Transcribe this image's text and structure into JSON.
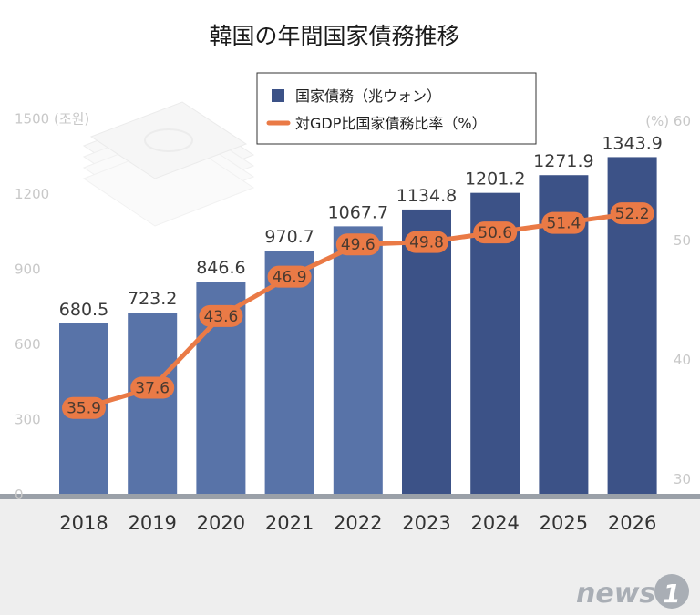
{
  "colors": {
    "bar_light": "#5873a8",
    "bar_dark": "#3c5287",
    "line": "#ea7a46",
    "floor": "#eeeeee",
    "logo": "#a9aeb5"
  },
  "icons": [
    "banknote-stack-icon",
    "news1-logo"
  ],
  "chart_data": {
    "type": "bar",
    "title": "韓国の年間国家債務推移",
    "categories": [
      "2018",
      "2019",
      "2020",
      "2021",
      "2022",
      "2023",
      "2024",
      "2025",
      "2026"
    ],
    "series": [
      {
        "name": "国家債務（兆ウォン）",
        "type": "bar",
        "axis": "left",
        "values": [
          680.5,
          723.2,
          846.6,
          970.7,
          1067.7,
          1134.8,
          1201.2,
          1271.9,
          1343.9
        ],
        "labels": [
          "680.5",
          "723.2",
          "846.6",
          "970.7",
          "1067.7",
          "1134.8",
          "1201.2",
          "1271.9",
          "1343.9"
        ]
      },
      {
        "name": "対GDP比国家債務比率（%）",
        "type": "line",
        "axis": "right",
        "values": [
          35.9,
          37.6,
          43.6,
          46.9,
          49.6,
          49.8,
          50.6,
          51.4,
          52.2
        ],
        "labels": [
          "35.9",
          "37.6",
          "43.6",
          "46.9",
          "49.6",
          "49.8",
          "50.6",
          "51.4",
          "52.2"
        ]
      }
    ],
    "left_axis": {
      "unit_label": "1500 (조원)",
      "ticks": [
        {
          "value": 0,
          "label": "0"
        },
        {
          "value": 300,
          "label": "300"
        },
        {
          "value": 600,
          "label": "600"
        },
        {
          "value": 900,
          "label": "900"
        },
        {
          "value": 1200,
          "label": "1200"
        },
        {
          "value": 1500,
          "label": "1500 (조원)"
        }
      ],
      "ylim": [
        0,
        1500
      ]
    },
    "right_axis": {
      "ticks": [
        {
          "value": 30,
          "label": "30"
        },
        {
          "value": 40,
          "label": "40"
        },
        {
          "value": 50,
          "label": "50"
        },
        {
          "value": 60,
          "label": "(%) 60"
        }
      ],
      "ylim": [
        30,
        60
      ]
    },
    "legend": {
      "placement": "top-center",
      "entries": [
        "国家債務（兆ウォン）",
        "対GDP比国家債務比率（%）"
      ]
    },
    "grid": false
  },
  "branding": {
    "logo_text": "news",
    "logo_digit": "1"
  }
}
